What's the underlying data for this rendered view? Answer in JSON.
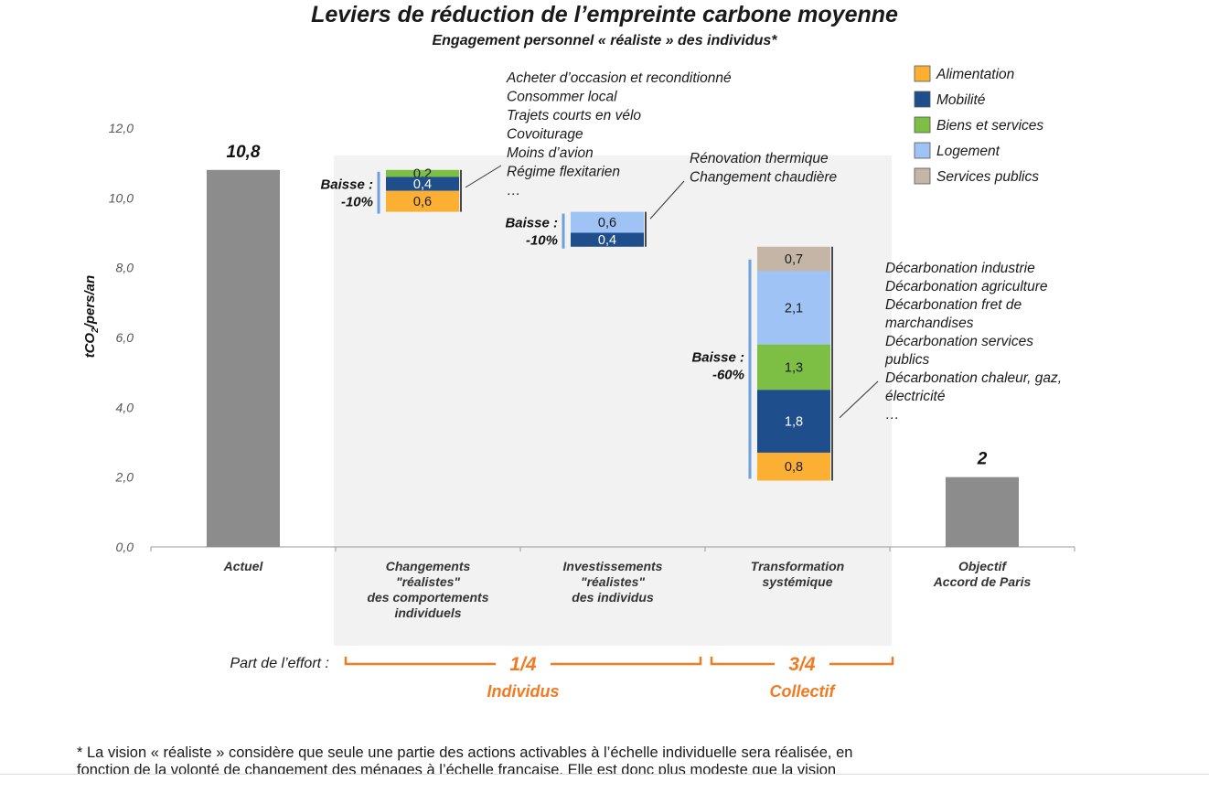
{
  "chart_data": {
    "type": "bar",
    "title": "Leviers de réduction de l’empreinte carbone moyenne",
    "subtitle": "Engagement personnel « réaliste » des individus*",
    "ylabel": "tCO",
    "ylabel_sub": "2",
    "ylabel_tail": "/pers/an",
    "ylim": [
      0,
      12
    ],
    "yticks": [
      "0,0",
      "2,0",
      "4,0",
      "6,0",
      "8,0",
      "10,0",
      "12,0"
    ],
    "ytick_values": [
      0,
      2,
      4,
      6,
      8,
      10,
      12
    ],
    "categories": [
      [
        "Actuel"
      ],
      [
        "Changements",
        "\"réalistes\"",
        "des comportements",
        "individuels"
      ],
      [
        "Investissements",
        "\"réalistes\"",
        "des individus"
      ],
      [
        "Transformation",
        "systémique"
      ],
      [
        "Objectif",
        "Accord de Paris"
      ]
    ],
    "totals": [
      {
        "category_index": 0,
        "value": 10.8,
        "label": "10,8"
      },
      {
        "category_index": 4,
        "value": 2,
        "label": "2"
      }
    ],
    "legend": [
      {
        "name": "Alimentation",
        "color": "#fbb034"
      },
      {
        "name": "Mobilité",
        "color": "#1f4e8c"
      },
      {
        "name": "Biens et services",
        "color": "#7dbf45"
      },
      {
        "name": "Logement",
        "color": "#9fc3f5"
      },
      {
        "name": "Services publics",
        "color": "#c4b5a6"
      }
    ],
    "legend_position": "top-right",
    "grid": false,
    "waterfall": [
      {
        "category_index": 1,
        "top": 10.8,
        "segments": [
          {
            "series": "Biens et services",
            "value": 0.2,
            "label": "0,2"
          },
          {
            "series": "Mobilité",
            "value": 0.4,
            "label": "0,4"
          },
          {
            "series": "Alimentation",
            "value": 0.6,
            "label": "0,6"
          }
        ],
        "drop_label": [
          "Baisse :",
          "-10%"
        ],
        "annotation": [
          "Acheter d’occasion et reconditionné",
          "Consommer local",
          "Trajets courts en vélo",
          "Covoiturage",
          "Moins d’avion",
          "Régime flexitarien",
          "…"
        ]
      },
      {
        "category_index": 2,
        "top": 9.6,
        "segments": [
          {
            "series": "Logement",
            "value": 0.6,
            "label": "0,6"
          },
          {
            "series": "Mobilité",
            "value": 0.4,
            "label": "0,4"
          }
        ],
        "drop_label": [
          "Baisse :",
          "-10%"
        ],
        "annotation": [
          "Rénovation thermique",
          "Changement chaudière"
        ]
      },
      {
        "category_index": 3,
        "top": 8.6,
        "segments": [
          {
            "series": "Services publics",
            "value": 0.7,
            "label": "0,7"
          },
          {
            "series": "Logement",
            "value": 2.1,
            "label": "2,1"
          },
          {
            "series": "Biens et services",
            "value": 1.3,
            "label": "1,3"
          },
          {
            "series": "Mobilité",
            "value": 1.8,
            "label": "1,8"
          },
          {
            "series": "Alimentation",
            "value": 0.8,
            "label": "0,8"
          }
        ],
        "drop_label": [
          "Baisse :",
          "-60%"
        ],
        "annotation": [
          "Décarbonation industrie",
          "Décarbonation agriculture",
          "Décarbonation fret de",
          "marchandises",
          "Décarbonation services",
          "publics",
          "Décarbonation chaleur, gaz,",
          "électricité",
          "…"
        ]
      }
    ]
  },
  "effort": {
    "label": "Part de l’effort :",
    "individus_fraction": "1/4",
    "individus_label": "Individus",
    "collectif_fraction": "3/4",
    "collectif_label": "Collectif"
  },
  "colors": {
    "total_bar": "#8c8c8c",
    "highlight_bg": "#f2f2f2",
    "accent": "#f07b22",
    "drop_bar": "#6fa0dc"
  },
  "footnote": [
    "* La vision « réaliste » considère que seule une partie des actions activables à l’échelle individuelle sera réalisée, en",
    "fonction de la volonté de changement des ménages à l’échelle française. Elle est donc plus modeste que la vision"
  ]
}
